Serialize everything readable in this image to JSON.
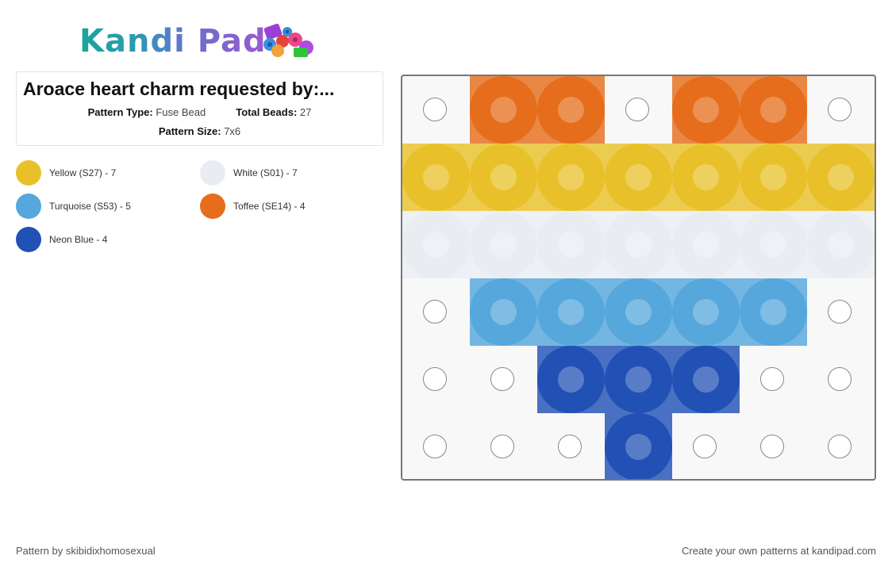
{
  "logo": {
    "text": "Kandi Pad"
  },
  "pattern": {
    "title": "Aroace heart charm requested by:...",
    "type_label": "Pattern Type:",
    "type_value": "Fuse Bead",
    "beads_label": "Total Beads:",
    "beads_value": "27",
    "size_label": "Pattern Size:",
    "size_value": "7x6"
  },
  "legend": [
    {
      "label": "Yellow (S27) - 7",
      "color": "#e8c12a",
      "key": "Y"
    },
    {
      "label": "White (S01) - 7",
      "color": "#e9edf2",
      "key": "W"
    },
    {
      "label": "Turquoise (S53) - 5",
      "color": "#56a7dc",
      "key": "T"
    },
    {
      "label": "Toffee (SE14) - 4",
      "color": "#e56d1b",
      "key": "O"
    },
    {
      "label": "Neon Blue - 4",
      "color": "#2251b5",
      "key": "B"
    }
  ],
  "grid": {
    "columns": 7,
    "rows": [
      ".OO.OO.",
      "YYYYYYY",
      "WWWWWWW",
      ".TTTTT.",
      "..BBB..",
      "...B..."
    ]
  },
  "footer": {
    "left": "Pattern by skibidixhomosexual",
    "right": "Create your own patterns at kandipad.com"
  }
}
